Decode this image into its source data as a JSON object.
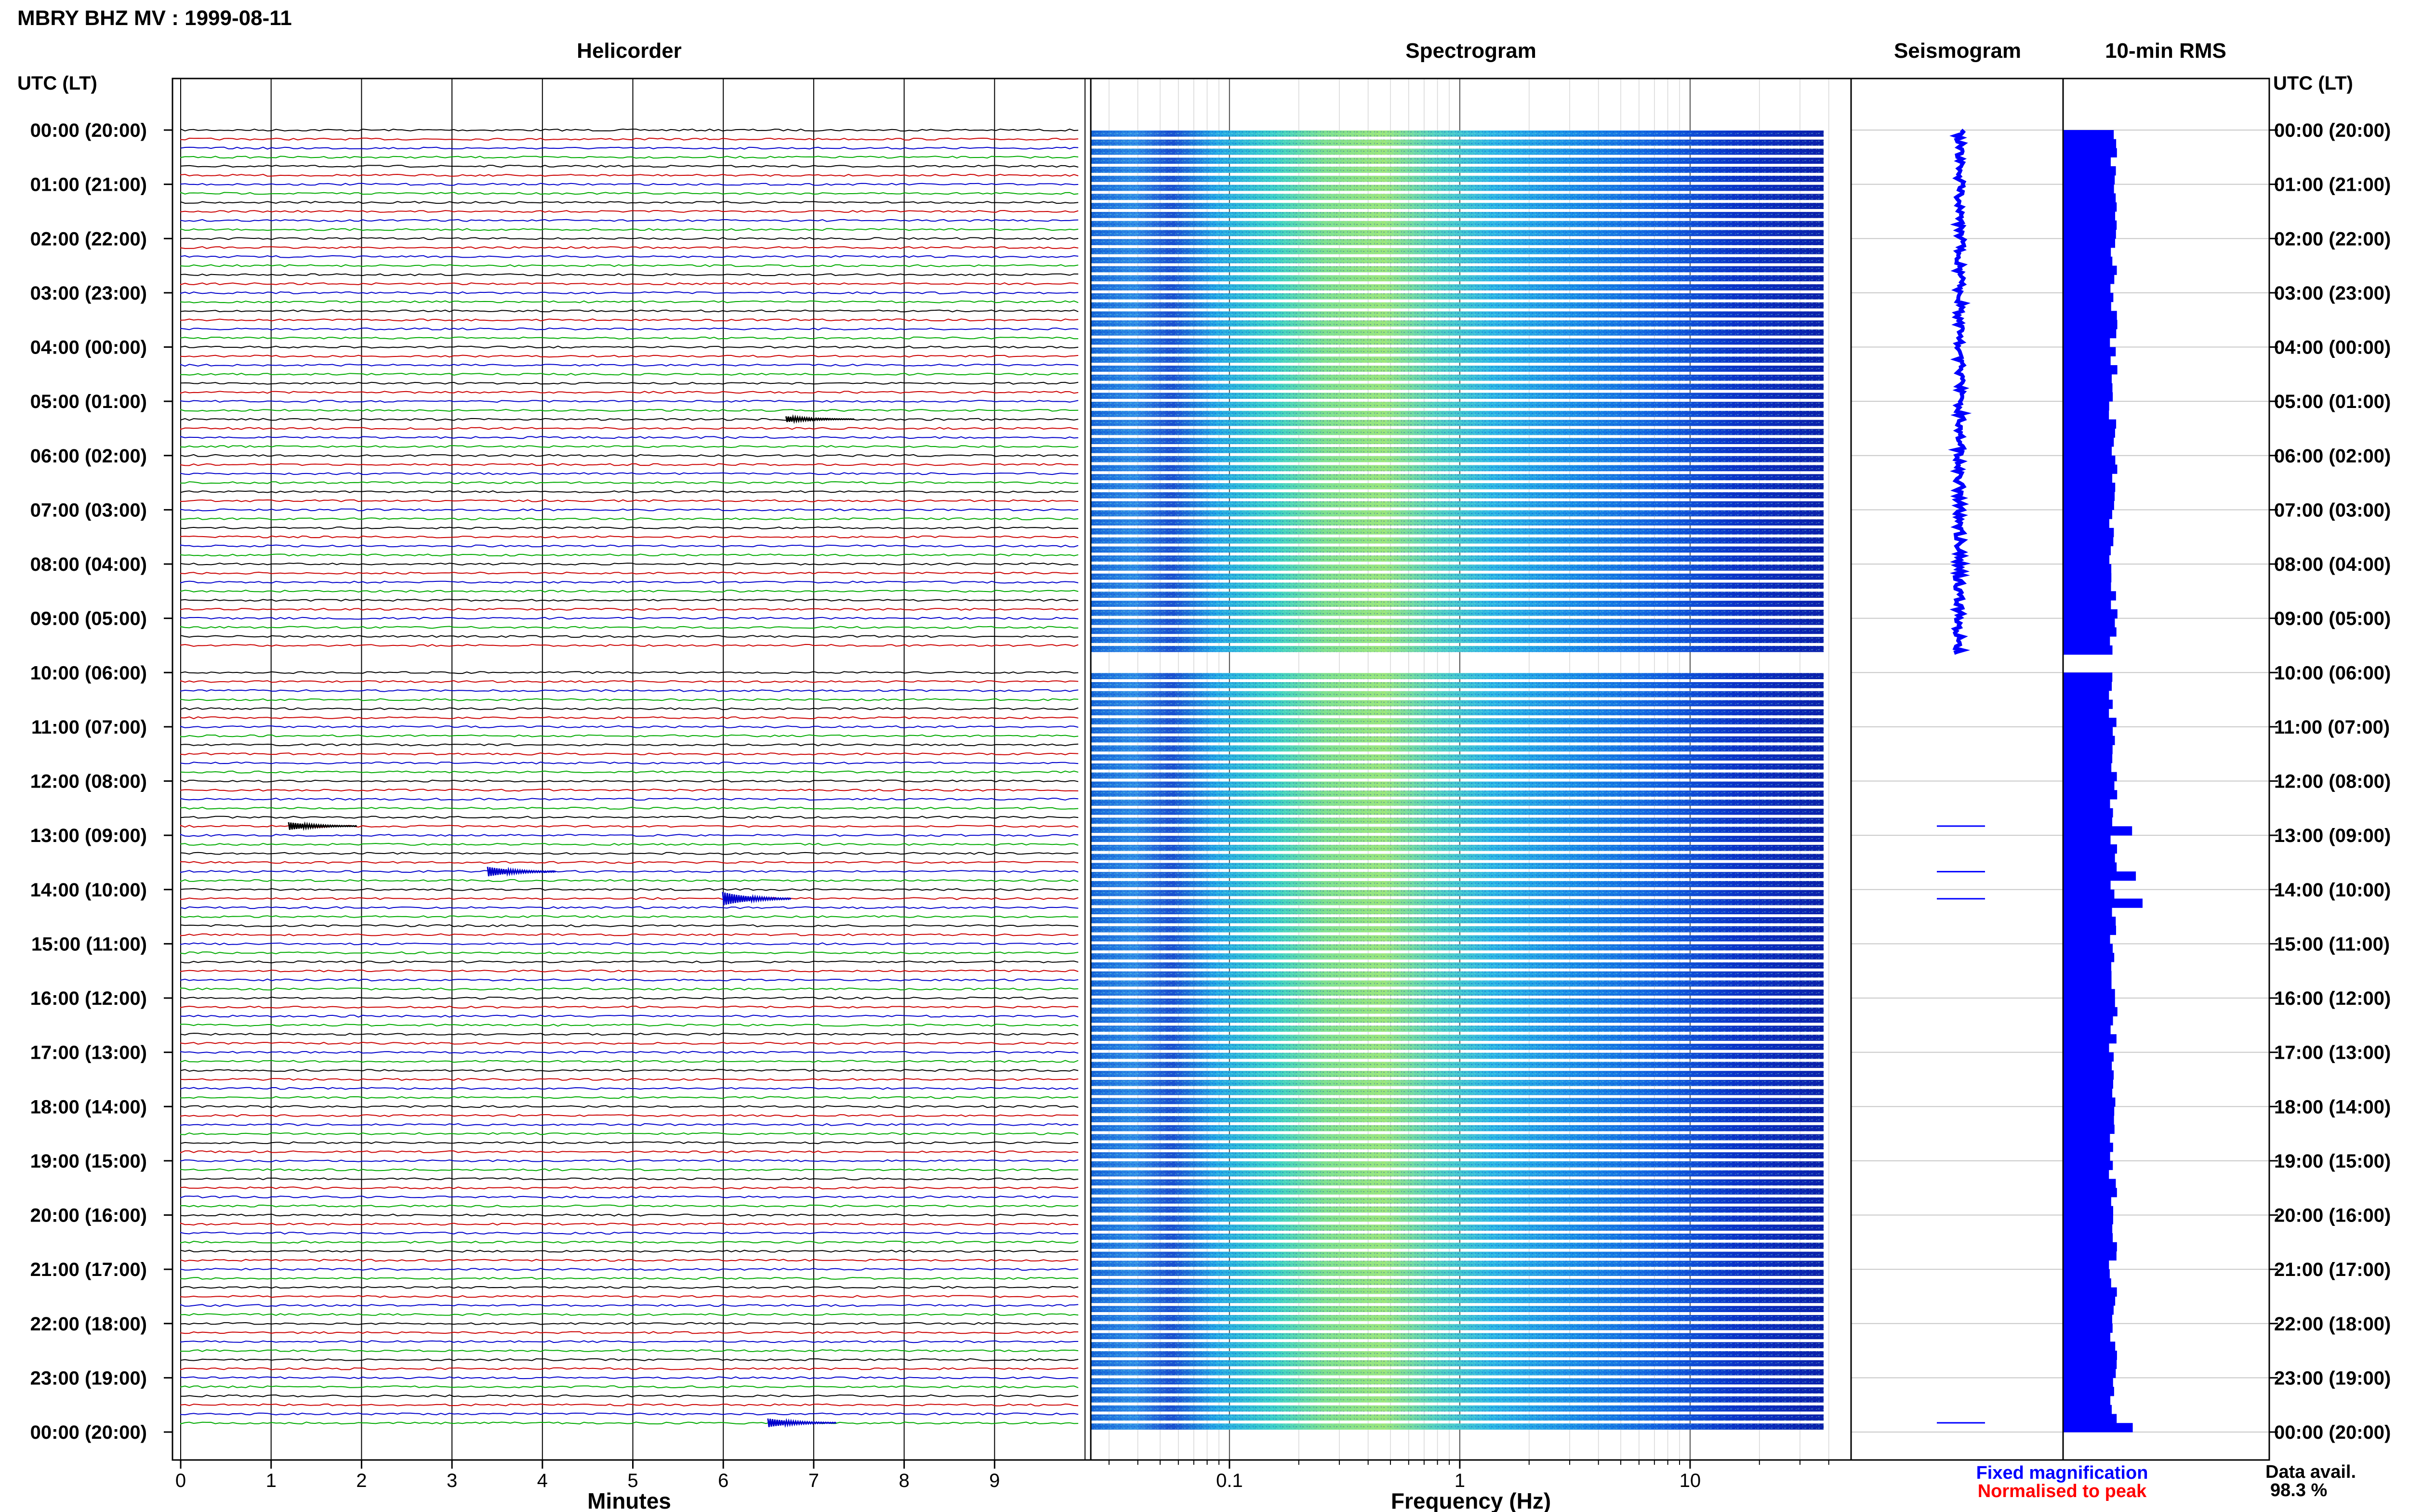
{
  "chart_data": {
    "type": "heatmap",
    "title": "MBRY BHZ MV : 1999-08-11",
    "panels": {
      "helicorder": {
        "title": "Helicorder",
        "xlabel": "Minutes",
        "xticks": [
          "0",
          "1",
          "2",
          "3",
          "4",
          "5",
          "6",
          "7",
          "8",
          "9"
        ],
        "xlim": [
          0,
          10
        ],
        "trace_colors": [
          "#000000",
          "#cc0000",
          "#0000cc",
          "#00aa00"
        ],
        "events": [
          {
            "hour": 12.83,
            "minute": 1.3,
            "amp": 8,
            "color": "#000000"
          },
          {
            "hour": 13.67,
            "minute": 3.5,
            "amp": 10,
            "color": "#0000cc"
          },
          {
            "hour": 14.17,
            "minute": 6.1,
            "amp": 14,
            "color": "#0000cc"
          },
          {
            "hour": 5.33,
            "minute": 6.8,
            "amp": 6,
            "color": "#000000"
          },
          {
            "hour": 23.83,
            "minute": 6.6,
            "amp": 9,
            "color": "#0000cc"
          }
        ]
      },
      "spectrogram": {
        "title": "Spectrogram",
        "xlabel": "Frequency (Hz)",
        "xscale": "log",
        "xticks": [
          "0.1",
          "1",
          "10"
        ],
        "xlim": [
          0.025,
          50
        ]
      },
      "seismogram": {
        "title": "Seismogram"
      },
      "rms": {
        "title": "10-min RMS",
        "spike_hours": [
          12.83,
          13.67,
          14.17,
          23.83
        ]
      }
    },
    "y_axis": {
      "header": "UTC (LT)",
      "labels": [
        "00:00 (20:00)",
        "01:00 (21:00)",
        "02:00 (22:00)",
        "03:00 (23:00)",
        "04:00 (00:00)",
        "05:00 (01:00)",
        "06:00 (02:00)",
        "07:00 (03:00)",
        "08:00 (04:00)",
        "09:00 (05:00)",
        "10:00 (06:00)",
        "11:00 (07:00)",
        "12:00 (08:00)",
        "13:00 (09:00)",
        "14:00 (10:00)",
        "15:00 (11:00)",
        "16:00 (12:00)",
        "17:00 (13:00)",
        "18:00 (14:00)",
        "19:00 (15:00)",
        "20:00 (16:00)",
        "21:00 (17:00)",
        "22:00 (18:00)",
        "23:00 (19:00)",
        "00:00 (20:00)"
      ]
    },
    "gap_hours": [
      9.67,
      10.0
    ],
    "legend": {
      "fixed": "Fixed magnification",
      "fixed_color": "#0000ff",
      "normalised": "Normalised to peak",
      "normalised_color": "#ff0000"
    },
    "data_avail_label": "Data avail.",
    "data_avail_value": "98.3 %"
  }
}
